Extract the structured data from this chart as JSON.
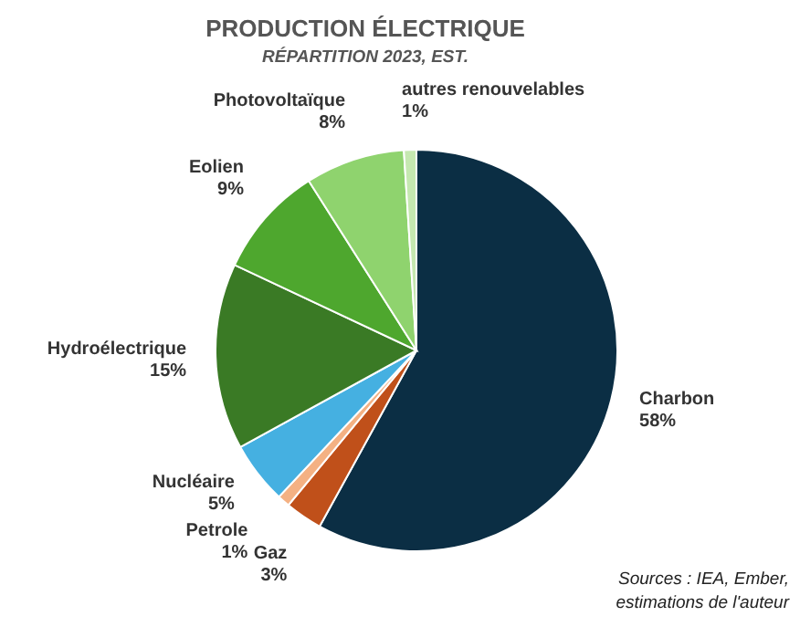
{
  "chart_data": {
    "type": "pie",
    "title": "PRODUCTION ÉLECTRIQUE",
    "subtitle": "RÉPARTITION 2023, EST.",
    "categories": [
      "Charbon",
      "Gaz",
      "Petrole",
      "Nucléaire",
      "Hydroélectrique",
      "Eolien",
      "Photovoltaïque",
      "autres renouvelables"
    ],
    "values": [
      58,
      3,
      1,
      5,
      15,
      9,
      8,
      1
    ],
    "value_labels": [
      "58%",
      "3%",
      "1%",
      "5%",
      "15%",
      "9%",
      "8%",
      "1%"
    ],
    "colors": [
      "#0b2e44",
      "#c0501a",
      "#f4b183",
      "#45b0e1",
      "#3a7a25",
      "#4ea72e",
      "#8fd36e",
      "#c5e8b0"
    ],
    "annotations": [
      "Sources : IEA, Ember, estimations de l'auteur"
    ]
  }
}
